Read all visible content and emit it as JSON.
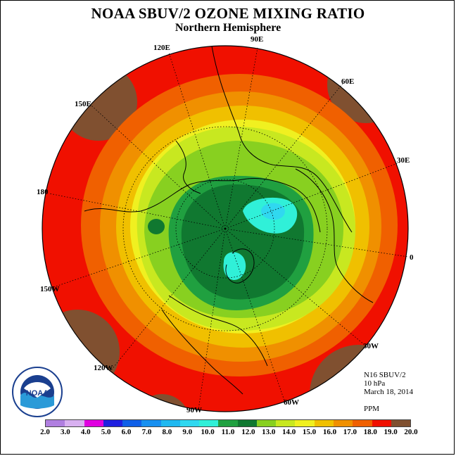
{
  "title": "NOAA SBUV/2 OZONE MIXING RATIO",
  "subtitle": "Northern Hemisphere",
  "longitude_labels": {
    "lon_90e": "90E",
    "lon_60e": "60E",
    "lon_120e": "120E",
    "lon_150e": "150E",
    "lon_30e": "30E",
    "lon_180": "180",
    "lon_0": "0",
    "lon_150w": "150W",
    "lon_30w": "30W",
    "lon_120w": "120W",
    "lon_60w": "60W",
    "lon_90w": "90W"
  },
  "info": {
    "instrument": "N16 SBUV/2",
    "pressure": "10 hPa",
    "date": "March 18, 2014",
    "units": "PPM"
  },
  "colorbar": {
    "ticks": [
      "2.0",
      "3.0",
      "4.0",
      "5.0",
      "6.0",
      "7.0",
      "8.0",
      "9.0",
      "10.0",
      "11.0",
      "12.0",
      "13.0",
      "14.0",
      "15.0",
      "16.0",
      "17.0",
      "18.0",
      "19.0",
      "20.0"
    ],
    "colors": [
      "#b07fe0",
      "#d8b0f0",
      "#e000e0",
      "#2020e0",
      "#1060e8",
      "#1890f0",
      "#20b8f0",
      "#30d8f0",
      "#30f0d8",
      "#20a040",
      "#107830",
      "#88d020",
      "#c8e820",
      "#f0f020",
      "#f0c000",
      "#f09000",
      "#f06000",
      "#f01000",
      "#805030"
    ]
  },
  "map": {
    "ocean_color": "#f01000",
    "coast_color": "#000000",
    "outer_corner_color": "#805030"
  },
  "logo": {
    "text": "NOAA"
  }
}
